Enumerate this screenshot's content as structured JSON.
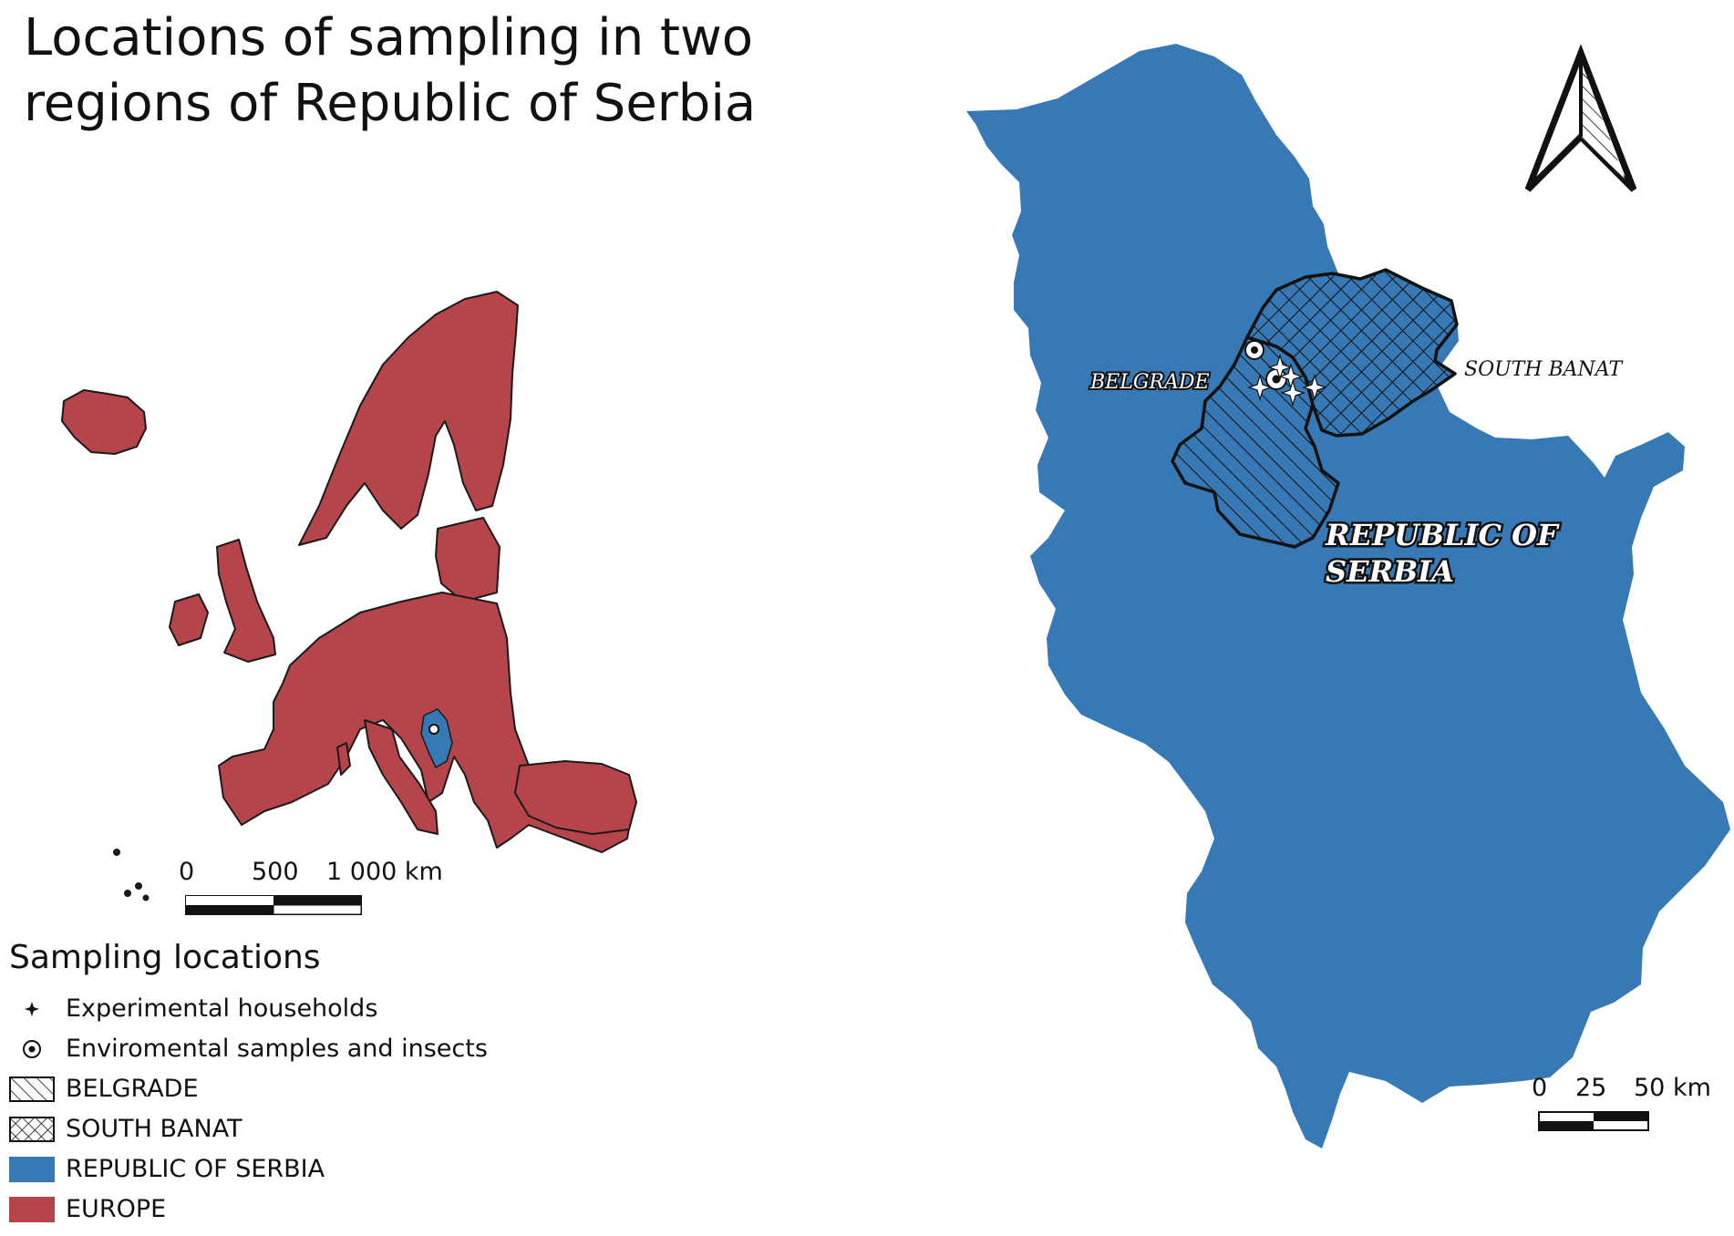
{
  "title": {
    "line1": "Locations of sampling in two",
    "line2": "regions of Republic of Serbia"
  },
  "colors": {
    "europe": "#b5454b",
    "serbia": "#3679b5",
    "outline": "#1a1a1a",
    "background": "#ffffff"
  },
  "europe_map": {
    "scale_bar": {
      "labels": [
        "0",
        "500",
        "1 000 km"
      ]
    }
  },
  "serbia_map": {
    "labels": {
      "belgrade": "BELGRADE",
      "south_banat": "SOUTH BANAT",
      "serbia_line1": "REPUBLIC OF",
      "serbia_line2": "SERBIA"
    },
    "scale_bar": {
      "labels": [
        "0",
        "25",
        "50 km"
      ]
    },
    "north_arrow_icon": "north-arrow-icon"
  },
  "legend": {
    "title": "Sampling locations",
    "items": [
      {
        "label": "Experimental households",
        "icon": "star-icon"
      },
      {
        "label": "Enviromental samples and insects",
        "icon": "circled-dot-icon"
      },
      {
        "label": "BELGRADE",
        "icon": "diagonal-hatch-icon"
      },
      {
        "label": "SOUTH BANAT",
        "icon": "crosshatch-icon"
      },
      {
        "label": "REPUBLIC OF SERBIA",
        "icon": "blue-fill-icon"
      },
      {
        "label": "EUROPE",
        "icon": "red-fill-icon"
      }
    ]
  }
}
